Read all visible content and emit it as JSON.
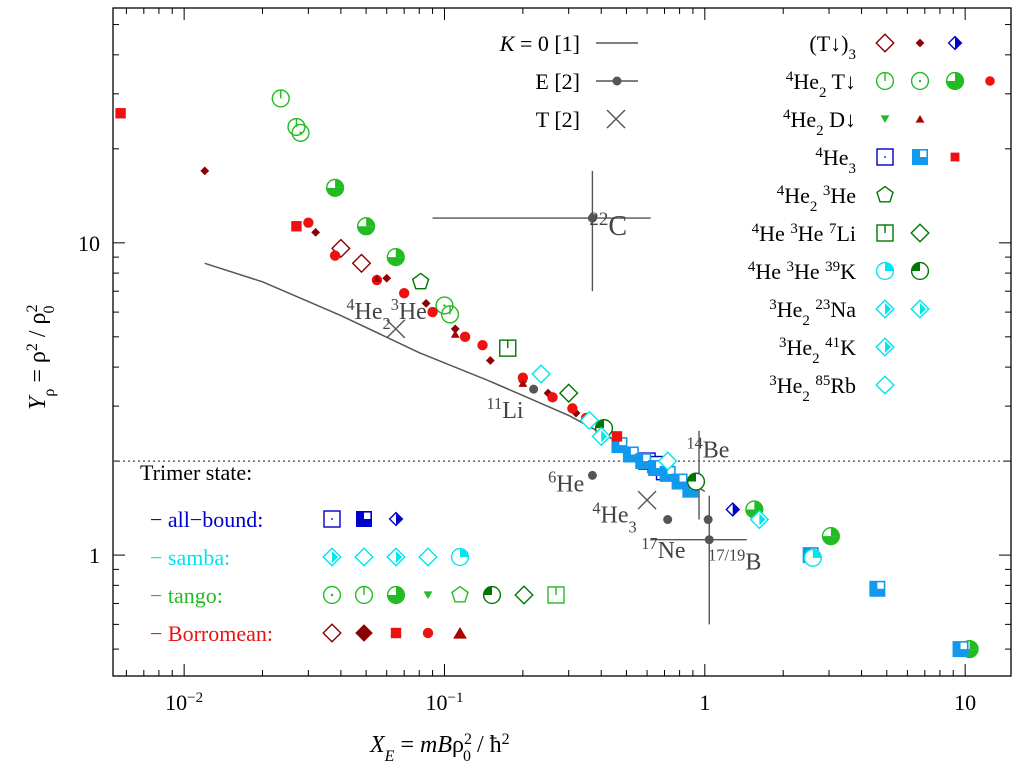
{
  "chart_data": {
    "type": "scatter",
    "xlabel": "X_E = mBρ0² / ħ²",
    "ylabel": "Yρ = ρ² / ρ0²",
    "xscale": "log",
    "yscale": "log",
    "xlim": [
      0.00533,
      15
    ],
    "ylim": [
      0.41,
      56.5
    ],
    "xticks": [
      {
        "v": 0.01,
        "base": "10",
        "exp": "−2"
      },
      {
        "v": 0.1,
        "base": "10",
        "exp": "−1"
      },
      {
        "v": 1,
        "base": "1",
        "exp": ""
      },
      {
        "v": 10,
        "base": "10",
        "exp": ""
      }
    ],
    "yticks": [
      {
        "v": 1,
        "label": "1"
      },
      {
        "v": 10,
        "label": "10"
      }
    ],
    "grid": false,
    "reference_line": {
      "y": 2.0,
      "style": "dotted"
    },
    "colors": {
      "T_dark": "#8b0000",
      "T_blue": "#0000cc",
      "green": "#22bb22",
      "red": "#ee1111",
      "blue": "#0000cc",
      "lightblue": "#1199ee",
      "darkgreen": "#007700",
      "cyan": "#00e5ee",
      "exp": "#555555",
      "line": "#555555"
    },
    "theory_line": {
      "name": "K = 0 [1]",
      "points": [
        [
          0.012,
          8.6
        ],
        [
          0.02,
          7.5
        ],
        [
          0.04,
          5.85
        ],
        [
          0.08,
          4.45
        ],
        [
          0.15,
          3.6
        ],
        [
          0.3,
          2.8
        ],
        [
          0.6,
          2.05
        ],
        [
          1.0,
          1.6
        ]
      ]
    },
    "experiment": {
      "name": "E [2]",
      "points": [
        {
          "x": 0.37,
          "y": 12.0,
          "xerr": [
            0.09,
            0.62
          ],
          "yerr": [
            7.0,
            17.0
          ]
        },
        {
          "x": 0.22,
          "y": 3.4
        },
        {
          "x": 0.37,
          "y": 1.8
        },
        {
          "x": 0.72,
          "y": 1.3
        },
        {
          "x": 0.95,
          "y": 1.7,
          "yerr": [
            1.3,
            2.5
          ]
        },
        {
          "x": 1.03,
          "y": 1.3
        },
        {
          "x": 1.04,
          "y": 1.12,
          "xerr": [
            0.62,
            1.45
          ],
          "yerr": [
            0.6,
            1.55
          ]
        }
      ]
    },
    "theory_T": {
      "name": "T [2]",
      "points": [
        {
          "x": 0.065,
          "y": 5.3
        },
        {
          "x": 0.6,
          "y": 1.5
        }
      ]
    },
    "annotations": [
      {
        "x": 0.36,
        "y": 10.6,
        "sup": "22",
        "base": "C",
        "size": 28
      },
      {
        "x": 0.042,
        "y": 5.7,
        "sup": "4",
        "base": "He",
        "sub": "2",
        "sup2": "3",
        "base2": "He",
        "size": 24
      },
      {
        "x": 0.145,
        "y": 2.75,
        "sup": "11",
        "base": "Li",
        "size": 24
      },
      {
        "x": 0.25,
        "y": 1.6,
        "sup": "6",
        "base": "He",
        "size": 24
      },
      {
        "x": 0.37,
        "y": 1.27,
        "sup": "4",
        "base": "He",
        "sub": "3",
        "size": 24
      },
      {
        "x": 0.57,
        "y": 0.98,
        "sup": "17",
        "base": "Ne",
        "size": 24
      },
      {
        "x": 0.85,
        "y": 2.05,
        "sup": "14",
        "base": "Be",
        "size": 24
      },
      {
        "x": 1.03,
        "y": 0.9,
        "sup": "17/19",
        "base": "B",
        "size": 24
      }
    ],
    "series": [
      {
        "name": "(T↓)3",
        "points": [
          {
            "x": 0.04,
            "y": 9.6,
            "m": "dmo",
            "c": "#8b0000"
          },
          {
            "x": 0.048,
            "y": 8.6,
            "m": "dmo",
            "c": "#8b0000"
          },
          {
            "x": 0.012,
            "y": 17.0,
            "m": "dsm",
            "c": "#8b0000"
          },
          {
            "x": 0.032,
            "y": 10.8,
            "m": "dsm",
            "c": "#8b0000"
          },
          {
            "x": 0.06,
            "y": 7.7,
            "m": "dsm",
            "c": "#8b0000"
          },
          {
            "x": 0.085,
            "y": 6.4,
            "m": "dsm",
            "c": "#8b0000"
          },
          {
            "x": 0.11,
            "y": 5.3,
            "m": "dsm",
            "c": "#8b0000"
          },
          {
            "x": 0.15,
            "y": 4.2,
            "m": "dsm",
            "c": "#8b0000"
          },
          {
            "x": 0.2,
            "y": 3.6,
            "m": "dsm",
            "c": "#8b0000"
          },
          {
            "x": 0.25,
            "y": 3.3,
            "m": "dsm",
            "c": "#8b0000"
          },
          {
            "x": 0.32,
            "y": 2.85,
            "m": "dsm",
            "c": "#8b0000"
          },
          {
            "x": 1.28,
            "y": 1.4,
            "m": "dbh",
            "c": "#0000cc"
          }
        ]
      },
      {
        "name": "4He2 T↓",
        "points": [
          {
            "x": 0.0235,
            "y": 29.0,
            "m": "cv",
            "c": "#22bb22"
          },
          {
            "x": 0.027,
            "y": 23.5,
            "m": "cv",
            "c": "#22bb22"
          },
          {
            "x": 0.105,
            "y": 5.9,
            "m": "cv",
            "c": "#22bb22"
          },
          {
            "x": 0.028,
            "y": 22.5,
            "m": "cdot",
            "c": "#22bb22"
          },
          {
            "x": 0.1,
            "y": 6.3,
            "m": "cdot",
            "c": "#22bb22"
          },
          {
            "x": 0.038,
            "y": 15.0,
            "m": "chf",
            "c": "#22bb22"
          },
          {
            "x": 0.05,
            "y": 11.3,
            "m": "chf",
            "c": "#22bb22"
          },
          {
            "x": 0.065,
            "y": 9.0,
            "m": "chf",
            "c": "#22bb22"
          },
          {
            "x": 1.55,
            "y": 1.4,
            "m": "chf",
            "c": "#22bb22"
          },
          {
            "x": 3.05,
            "y": 1.15,
            "m": "chf",
            "c": "#22bb22"
          },
          {
            "x": 10.4,
            "y": 0.5,
            "m": "chf",
            "c": "#22bb22"
          },
          {
            "x": 0.0057,
            "y": 26.0,
            "m": "sqf",
            "c": "#ee1111"
          },
          {
            "x": 0.027,
            "y": 11.3,
            "m": "sqf",
            "c": "#ee1111"
          },
          {
            "x": 0.03,
            "y": 11.6,
            "m": "cf",
            "c": "#ee1111"
          },
          {
            "x": 0.038,
            "y": 9.1,
            "m": "cf",
            "c": "#ee1111"
          },
          {
            "x": 0.055,
            "y": 7.6,
            "m": "cf",
            "c": "#ee1111"
          },
          {
            "x": 0.07,
            "y": 6.9,
            "m": "cf",
            "c": "#ee1111"
          },
          {
            "x": 0.09,
            "y": 6.0,
            "m": "cf",
            "c": "#ee1111"
          },
          {
            "x": 0.12,
            "y": 5.0,
            "m": "cf",
            "c": "#ee1111"
          },
          {
            "x": 0.14,
            "y": 4.7,
            "m": "cf",
            "c": "#ee1111"
          },
          {
            "x": 0.2,
            "y": 3.7,
            "m": "cf",
            "c": "#ee1111"
          },
          {
            "x": 0.26,
            "y": 3.2,
            "m": "cf",
            "c": "#ee1111"
          },
          {
            "x": 0.31,
            "y": 2.95,
            "m": "cf",
            "c": "#ee1111"
          },
          {
            "x": 0.35,
            "y": 2.75,
            "m": "cf",
            "c": "#ee1111"
          }
        ]
      },
      {
        "name": "4He2 D↓",
        "points": [
          {
            "x": 0.41,
            "y": 2.5,
            "m": "tdn",
            "c": "#22bb22"
          },
          {
            "x": 0.055,
            "y": 7.7,
            "m": "tup",
            "c": "#aa0000"
          },
          {
            "x": 0.11,
            "y": 5.1,
            "m": "tup",
            "c": "#aa0000"
          },
          {
            "x": 0.2,
            "y": 3.55,
            "m": "tup",
            "c": "#aa0000"
          }
        ]
      },
      {
        "name": "4He3",
        "points": [
          {
            "x": 0.6,
            "y": 2.0,
            "m": "sqo",
            "c": "#0000cc"
          },
          {
            "x": 0.65,
            "y": 1.95,
            "m": "sqo",
            "c": "#0000cc"
          },
          {
            "x": 0.7,
            "y": 1.85,
            "m": "sqo",
            "c": "#0000cc"
          },
          {
            "x": 0.47,
            "y": 2.25,
            "m": "sqq",
            "c": "#1199ee"
          },
          {
            "x": 0.52,
            "y": 2.1,
            "m": "sqq",
            "c": "#1199ee"
          },
          {
            "x": 0.58,
            "y": 2.0,
            "m": "sqq",
            "c": "#1199ee"
          },
          {
            "x": 0.65,
            "y": 1.9,
            "m": "sqq",
            "c": "#1199ee"
          },
          {
            "x": 0.72,
            "y": 1.82,
            "m": "sqq",
            "c": "#1199ee"
          },
          {
            "x": 0.8,
            "y": 1.72,
            "m": "sqq",
            "c": "#1199ee"
          },
          {
            "x": 0.88,
            "y": 1.62,
            "m": "sqq",
            "c": "#1199ee"
          },
          {
            "x": 2.55,
            "y": 1.0,
            "m": "sqq",
            "c": "#1199ee"
          },
          {
            "x": 4.6,
            "y": 0.78,
            "m": "sqq",
            "c": "#1199ee"
          },
          {
            "x": 9.6,
            "y": 0.5,
            "m": "sqq",
            "c": "#1199ee"
          },
          {
            "x": 0.46,
            "y": 2.4,
            "m": "sqf",
            "c": "#ee1111"
          }
        ]
      },
      {
        "name": "4He2 3He",
        "points": [
          {
            "x": 0.081,
            "y": 7.5,
            "m": "pent",
            "c": "#007700"
          }
        ]
      },
      {
        "name": "4He 3He 7Li",
        "points": [
          {
            "x": 0.175,
            "y": 4.6,
            "m": "sqt",
            "c": "#007700"
          },
          {
            "x": 0.3,
            "y": 3.3,
            "m": "dmo",
            "c": "#007700"
          }
        ]
      },
      {
        "name": "4He 3He 39K",
        "points": [
          {
            "x": 0.925,
            "y": 1.72,
            "m": "cqk",
            "c": "#007700"
          },
          {
            "x": 0.41,
            "y": 2.55,
            "m": "cqk",
            "c": "#007700"
          },
          {
            "x": 2.6,
            "y": 0.98,
            "m": "cq",
            "c": "#00e5ee"
          }
        ]
      },
      {
        "name": "3He2 23Na",
        "points": [
          {
            "x": 0.235,
            "y": 3.8,
            "m": "dmo",
            "c": "#00e5ee"
          },
          {
            "x": 0.36,
            "y": 2.7,
            "m": "dmo",
            "c": "#00e5ee"
          },
          {
            "x": 0.72,
            "y": 2.0,
            "m": "dmo",
            "c": "#00e5ee"
          },
          {
            "x": 1.62,
            "y": 1.3,
            "m": "dmh",
            "c": "#00e5ee"
          },
          {
            "x": 0.4,
            "y": 2.4,
            "m": "dmh",
            "c": "#00e5ee"
          }
        ]
      }
    ],
    "legend_top": [
      {
        "label_html": "(T↓)<sub>3</sub>",
        "markers": [
          [
            "dmo",
            "#8b0000"
          ],
          [
            "dsm",
            "#8b0000"
          ],
          [
            "dbh",
            "#0000cc"
          ]
        ]
      },
      {
        "label_html": "<sup>4</sup>He<sub>2</sub> T↓",
        "markers": [
          [
            "cv",
            "#22bb22"
          ],
          [
            "cdot",
            "#22bb22"
          ],
          [
            "chf",
            "#22bb22"
          ],
          [
            "cfs",
            "#ee1111"
          ]
        ]
      },
      {
        "label_html": "<sup>4</sup>He<sub>2</sub> D↓",
        "markers": [
          [
            "tdn",
            "#22bb22"
          ],
          [
            "tup",
            "#aa0000"
          ]
        ]
      },
      {
        "label_html": "<sup>4</sup>He<sub>3</sub>",
        "markers": [
          [
            "sqo",
            "#0000cc"
          ],
          [
            "sqq",
            "#1199ee"
          ],
          [
            "sqfs",
            "#ee1111"
          ]
        ]
      },
      {
        "label_html": "<sup>4</sup>He<sub>2</sub> <sup>3</sup>He",
        "markers": [
          [
            "pent",
            "#007700"
          ]
        ]
      },
      {
        "label_html": "<sup>4</sup>He <sup>3</sup>He <sup>7</sup>Li",
        "markers": [
          [
            "sqt",
            "#007700"
          ],
          [
            "dmo",
            "#007700"
          ]
        ]
      },
      {
        "label_html": "<sup>4</sup>He <sup>3</sup>He <sup>39</sup>K",
        "markers": [
          [
            "cq",
            "#00e5ee"
          ],
          [
            "cqk",
            "#007700"
          ]
        ]
      },
      {
        "label_html": "<sup>3</sup>He<sub>2</sub> <sup>23</sup>Na",
        "markers": [
          [
            "dmh",
            "#00e5ee"
          ],
          [
            "dmh",
            "#00e5ee"
          ]
        ]
      },
      {
        "label_html": "<sup>3</sup>He<sub>2</sub> <sup>41</sup>K",
        "markers": [
          [
            "dmh",
            "#00e5ee"
          ]
        ]
      },
      {
        "label_html": "<sup>3</sup>He<sub>2</sub> <sup>85</sup>Rb",
        "markers": [
          [
            "dmo",
            "#00e5ee"
          ]
        ]
      }
    ],
    "legend_lines": [
      {
        "label_html": "<tspan font-style='italic'>K</tspan> = 0 [1]",
        "kind": "line"
      },
      {
        "label_html": "E [2]",
        "kind": "dot"
      },
      {
        "label_html": "T [2]",
        "kind": "cross"
      }
    ],
    "legend_trimer": {
      "title": "Trimer state:",
      "rows": [
        {
          "label": "− all−bound:",
          "color": "#0000cc",
          "markers": [
            [
              "sqo",
              "#0000cc"
            ],
            [
              "sqq",
              "#0000cc"
            ],
            [
              "dbh",
              "#0000cc"
            ]
          ]
        },
        {
          "label": "− samba:",
          "color": "#00e5ee",
          "markers": [
            [
              "dmh",
              "#00e5ee"
            ],
            [
              "dmo",
              "#00e5ee"
            ],
            [
              "dmh",
              "#00e5ee"
            ],
            [
              "dmo",
              "#00e5ee"
            ],
            [
              "cq",
              "#00e5ee"
            ]
          ]
        },
        {
          "label": "− tango:",
          "color": "#22bb22",
          "markers": [
            [
              "cdot",
              "#22bb22"
            ],
            [
              "cv",
              "#22bb22"
            ],
            [
              "chf",
              "#22bb22"
            ],
            [
              "tdn",
              "#22bb22"
            ],
            [
              "pent",
              "#22bb22"
            ],
            [
              "cqk",
              "#007700"
            ],
            [
              "dmo",
              "#007700"
            ],
            [
              "sqt",
              "#22bb22"
            ]
          ]
        },
        {
          "label": "− Borromean:",
          "color": "#ee1111",
          "markers": [
            [
              "dmo",
              "#8b0000"
            ],
            [
              "dmd",
              "#8b0000"
            ],
            [
              "sqf",
              "#ee1111"
            ],
            [
              "cf",
              "#ee1111"
            ],
            [
              "tupb",
              "#aa0000"
            ]
          ]
        }
      ]
    }
  }
}
